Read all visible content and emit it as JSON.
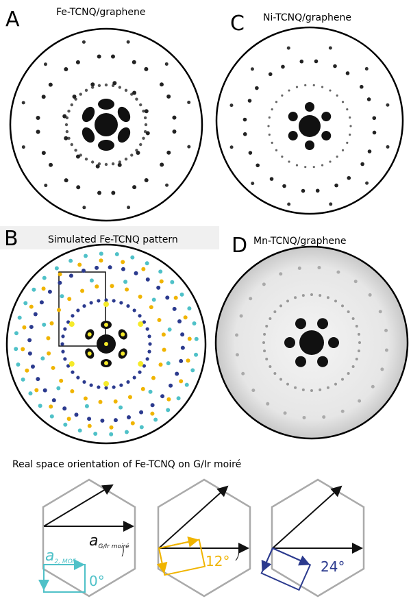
{
  "panels": [
    {
      "label": "A",
      "title": "Fe-TCNQ/graphene"
    },
    {
      "label": "C",
      "title": "Ni-TCNQ/graphene"
    },
    {
      "label": "B",
      "title": "Simulated Fe-TCNQ pattern"
    },
    {
      "label": "D",
      "title": "Mn-TCNQ/graphene"
    }
  ],
  "real_space": {
    "title": "Real space orientation of Fe-TCNQ on G/Ir moiré",
    "a_mof": "a",
    "a_mof_sub": "2, MOF",
    "a_moire": "a",
    "a_moire_sub": "G/Ir moiré",
    "angles": [
      "0°",
      "12°",
      "24°"
    ]
  }
}
